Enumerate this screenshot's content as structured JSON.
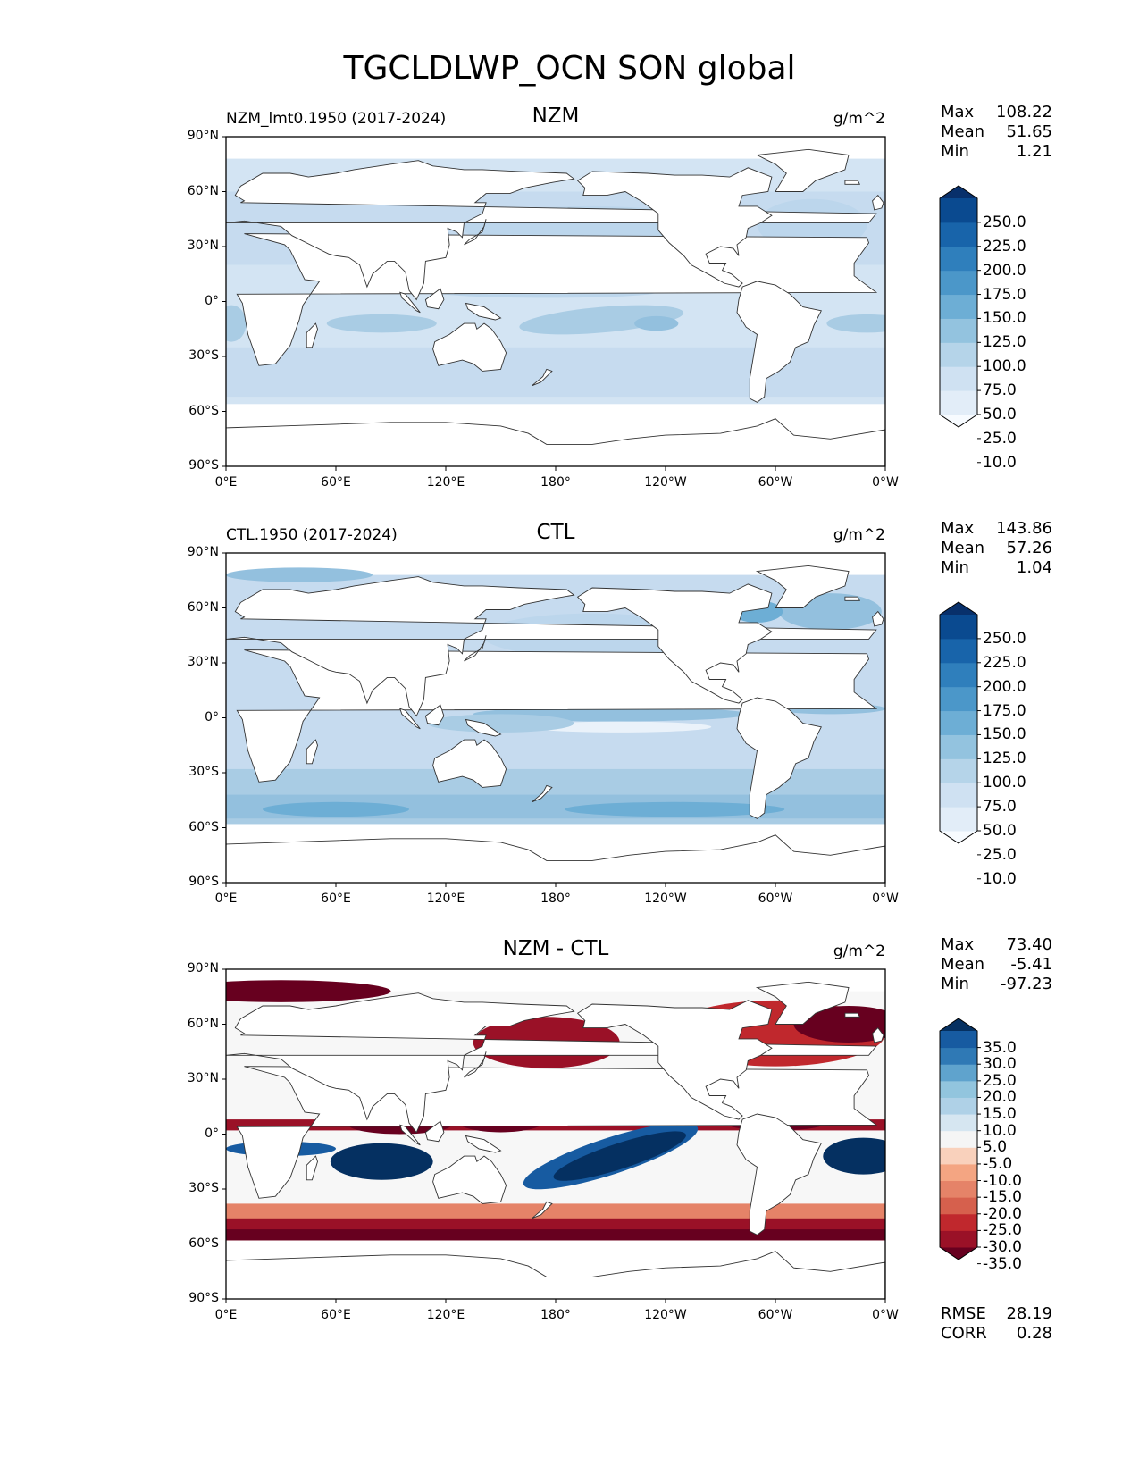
{
  "figure_title": "TGCLDLWP_OCN SON global",
  "axes": {
    "lat_ticks": [
      "90°N",
      "60°N",
      "30°N",
      "0°",
      "30°S",
      "60°S",
      "90°S"
    ],
    "lon_ticks": [
      "0°E",
      "60°E",
      "120°E",
      "180°",
      "120°W",
      "60°W",
      "0°W"
    ]
  },
  "panels": [
    {
      "left_title": "NZM_lmt0.1950 (2017-2024)",
      "center_title": "NZM",
      "units": "g/m^2",
      "stats": [
        {
          "label": "Max",
          "value": "108.22"
        },
        {
          "label": "Mean",
          "value": "51.65"
        },
        {
          "label": "Min",
          "value": "1.21"
        }
      ],
      "colorbar": {
        "labels": [
          "250.0",
          "225.0",
          "200.0",
          "175.0",
          "150.0",
          "125.0",
          "100.0",
          "75.0",
          "50.0",
          "25.0",
          "10.0"
        ],
        "colors": [
          "#f7fbff",
          "#e2edf8",
          "#cfe1f2",
          "#b5d4e9",
          "#93c3df",
          "#6daed5",
          "#4b97c9",
          "#2f7fbc",
          "#1864aa",
          "#0a4a90",
          "#08306b"
        ]
      }
    },
    {
      "left_title": "CTL.1950 (2017-2024)",
      "center_title": "CTL",
      "units": "g/m^2",
      "stats": [
        {
          "label": "Max",
          "value": "143.86"
        },
        {
          "label": "Mean",
          "value": "57.26"
        },
        {
          "label": "Min",
          "value": "1.04"
        }
      ],
      "colorbar": {
        "labels": [
          "250.0",
          "225.0",
          "200.0",
          "175.0",
          "150.0",
          "125.0",
          "100.0",
          "75.0",
          "50.0",
          "25.0",
          "10.0"
        ],
        "colors": [
          "#f7fbff",
          "#e2edf8",
          "#cfe1f2",
          "#b5d4e9",
          "#93c3df",
          "#6daed5",
          "#4b97c9",
          "#2f7fbc",
          "#1864aa",
          "#0a4a90",
          "#08306b"
        ]
      }
    },
    {
      "left_title": "",
      "center_title": "NZM - CTL",
      "units": "g/m^2",
      "stats": [
        {
          "label": "Max",
          "value": "73.40"
        },
        {
          "label": "Mean",
          "value": "-5.41"
        },
        {
          "label": "Min",
          "value": "-97.23"
        }
      ],
      "extra_stats": [
        {
          "label": "RMSE",
          "value": "28.19"
        },
        {
          "label": "CORR",
          "value": "0.28"
        }
      ],
      "colorbar": {
        "labels": [
          "35.0",
          "30.0",
          "25.0",
          "20.0",
          "15.0",
          "10.0",
          "5.0",
          "-5.0",
          "-10.0",
          "-15.0",
          "-20.0",
          "-25.0",
          "-30.0",
          "-35.0"
        ],
        "colors": [
          "#67001f",
          "#9a1127",
          "#c0282d",
          "#d6604d",
          "#e58368",
          "#f4a582",
          "#f9d1bc",
          "#f5f5f5",
          "#d6e6f1",
          "#afd1e7",
          "#92c5de",
          "#5fa3cd",
          "#2f79b5",
          "#175ba1",
          "#053061"
        ]
      }
    }
  ]
}
